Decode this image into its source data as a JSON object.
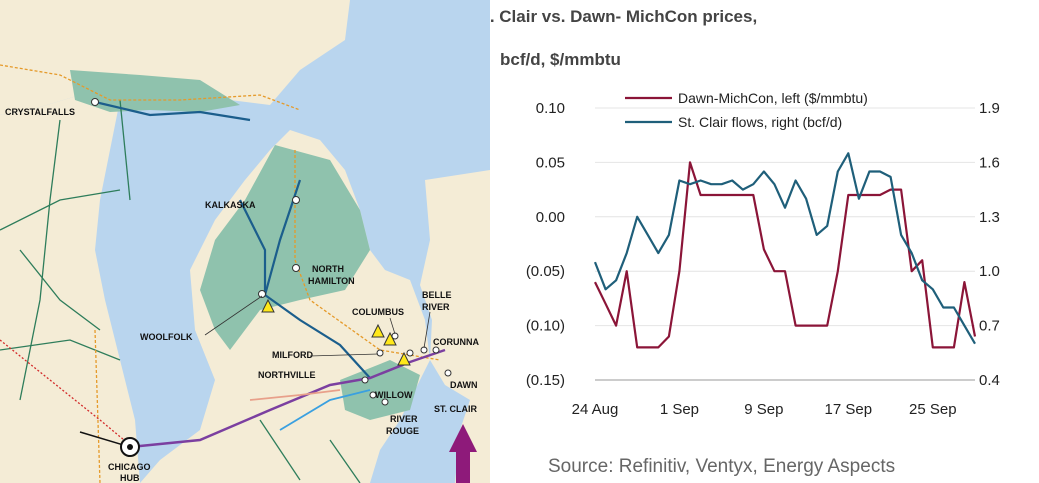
{
  "map": {
    "labels": [
      {
        "id": "crystal-falls",
        "text": "CRYSTALFALLS"
      },
      {
        "id": "kalkaska",
        "text": "KALKASKA"
      },
      {
        "id": "north",
        "text": "NORTH"
      },
      {
        "id": "hamilton",
        "text": "HAMILTON"
      },
      {
        "id": "woolfolk",
        "text": "WOOLFOLK"
      },
      {
        "id": "columbus",
        "text": "COLUMBUS"
      },
      {
        "id": "belle",
        "text": "BELLE"
      },
      {
        "id": "river",
        "text": "RIVER"
      },
      {
        "id": "corunna",
        "text": "CORUNNA"
      },
      {
        "id": "milford",
        "text": "MILFORD"
      },
      {
        "id": "northville",
        "text": "NORTHVILLE"
      },
      {
        "id": "willow",
        "text": "WILLOW"
      },
      {
        "id": "dawn",
        "text": "DAWN"
      },
      {
        "id": "st-clair",
        "text": "ST. CLAIR"
      },
      {
        "id": "river-rouge-1",
        "text": "RIVER"
      },
      {
        "id": "river-rouge-2",
        "text": "ROUGE"
      },
      {
        "id": "chicago",
        "text": "CHICAGO"
      },
      {
        "id": "hub",
        "text": "HUB"
      }
    ],
    "colors": {
      "water": "#b9d5ee",
      "land": "#f4ecd6",
      "basin": "#8fc2ad",
      "pipeline": "#1b5e8c",
      "export_arrow": "#8e1a7a"
    }
  },
  "chart_data": {
    "type": "line",
    "title_line1": "US exports via St. Clair vs. Dawn- MichCon prices,",
    "title_line2": "bcf/d, $/mmbtu",
    "source": "Source: Refinitiv, Ventyx, Energy Aspects",
    "x_ticks": [
      "24 Aug",
      "1 Sep",
      "9 Sep",
      "17 Sep",
      "25 Sep"
    ],
    "x_tick_days": [
      0,
      8,
      16,
      24,
      32
    ],
    "x_range": [
      0,
      36
    ],
    "y_left": {
      "ticks": [
        "0.10",
        "0.05",
        "0.00",
        "(0.05)",
        "(0.10)",
        "(0.15)"
      ],
      "range": [
        -0.15,
        0.1
      ]
    },
    "y_right": {
      "ticks": [
        "1.9",
        "1.6",
        "1.3",
        "1.0",
        "0.7",
        "0.4"
      ],
      "range": [
        0.4,
        1.9
      ]
    },
    "grid": true,
    "legend_position": "top",
    "series": [
      {
        "name": "Dawn-MichCon, left ($/mmbtu)",
        "axis": "left",
        "color": "#8b1538",
        "x": [
          0,
          1,
          2,
          3,
          4,
          5,
          6,
          7,
          8,
          9,
          10,
          11,
          12,
          13,
          14,
          15,
          16,
          17,
          18,
          19,
          20,
          21,
          22,
          23,
          24,
          25,
          26,
          27,
          28,
          29,
          30,
          31,
          32,
          33,
          34,
          35,
          36
        ],
        "y": [
          -0.06,
          -0.08,
          -0.1,
          -0.05,
          -0.12,
          -0.12,
          -0.12,
          -0.11,
          -0.05,
          0.05,
          0.02,
          0.02,
          0.02,
          0.02,
          0.02,
          0.02,
          -0.03,
          -0.05,
          -0.05,
          -0.1,
          -0.1,
          -0.1,
          -0.1,
          -0.05,
          0.02,
          0.02,
          0.02,
          0.02,
          0.025,
          0.025,
          -0.05,
          -0.04,
          -0.12,
          -0.12,
          -0.12,
          -0.06,
          -0.11
        ]
      },
      {
        "name": "St. Clair flows, right (bcf/d)",
        "axis": "right",
        "color": "#1f5f7a",
        "x": [
          0,
          1,
          2,
          3,
          4,
          5,
          6,
          7,
          8,
          9,
          10,
          11,
          12,
          13,
          14,
          15,
          16,
          17,
          18,
          19,
          20,
          21,
          22,
          23,
          24,
          25,
          26,
          27,
          28,
          29,
          30,
          31,
          32,
          33,
          34,
          35,
          36
        ],
        "y": [
          1.05,
          0.9,
          0.95,
          1.1,
          1.3,
          1.2,
          1.1,
          1.2,
          1.5,
          1.48,
          1.5,
          1.48,
          1.48,
          1.5,
          1.45,
          1.48,
          1.55,
          1.48,
          1.35,
          1.5,
          1.4,
          1.2,
          1.25,
          1.55,
          1.65,
          1.4,
          1.55,
          1.55,
          1.52,
          1.2,
          1.1,
          0.95,
          0.9,
          0.8,
          0.8,
          0.7,
          0.6
        ]
      }
    ]
  }
}
